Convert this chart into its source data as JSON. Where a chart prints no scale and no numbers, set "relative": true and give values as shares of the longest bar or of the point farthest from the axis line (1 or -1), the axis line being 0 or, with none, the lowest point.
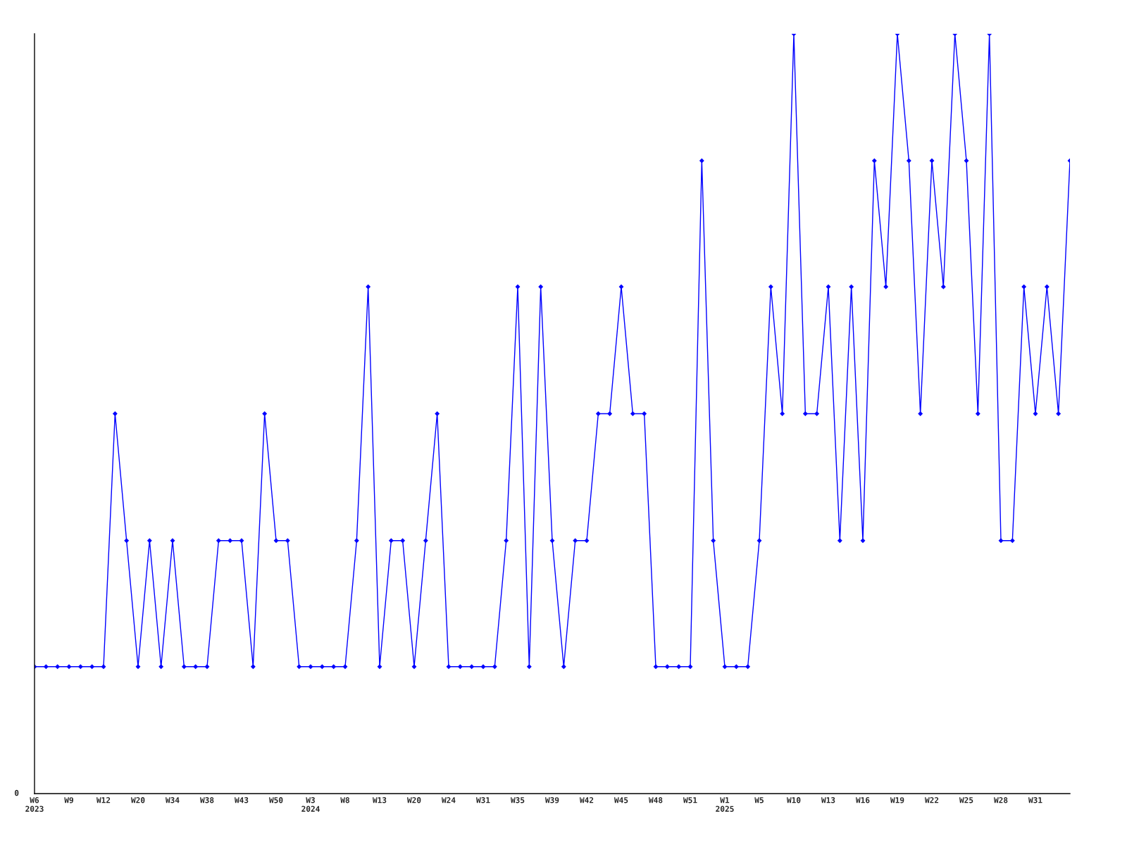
{
  "chart_data": {
    "type": "line",
    "relative": true,
    "categories": [
      "W6\n2023",
      null,
      null,
      "W9",
      null,
      null,
      "W12",
      null,
      null,
      "W20",
      null,
      null,
      "W34",
      null,
      null,
      "W38",
      null,
      null,
      "W43",
      null,
      null,
      "W50",
      null,
      null,
      "W3\n2024",
      null,
      null,
      "W8",
      null,
      null,
      "W13",
      null,
      null,
      "W20",
      null,
      null,
      "W24",
      null,
      null,
      "W31",
      null,
      null,
      "W35",
      null,
      null,
      "W39",
      null,
      null,
      "W42",
      null,
      null,
      "W45",
      null,
      null,
      "W48",
      null,
      null,
      "W51",
      null,
      null,
      "W1\n2025",
      null,
      null,
      "W5",
      null,
      null,
      "W10",
      null,
      null,
      "W13",
      null,
      null,
      "W16",
      null,
      null,
      "W19",
      null,
      null,
      "W22",
      null,
      null,
      "W25",
      null,
      null,
      "W28",
      null,
      null,
      "W31",
      null,
      null,
      null
    ],
    "series": [
      {
        "color": "#0000ff",
        "values": [
          0.167,
          0.167,
          0.167,
          0.167,
          0.167,
          0.167,
          0.167,
          0.5,
          0.333,
          0.167,
          0.333,
          0.167,
          0.333,
          0.167,
          0.167,
          0.167,
          0.333,
          0.333,
          0.333,
          0.167,
          0.5,
          0.333,
          0.333,
          0.167,
          0.167,
          0.167,
          0.167,
          0.167,
          0.333,
          0.667,
          0.167,
          0.333,
          0.333,
          0.167,
          0.333,
          0.5,
          0.167,
          0.167,
          0.167,
          0.167,
          0.167,
          0.333,
          0.667,
          0.167,
          0.667,
          0.333,
          0.167,
          0.333,
          0.333,
          0.5,
          0.5,
          0.667,
          0.5,
          0.5,
          0.167,
          0.167,
          0.167,
          0.167,
          0.833,
          0.333,
          0.167,
          0.167,
          0.167,
          0.333,
          0.667,
          0.5,
          1,
          0.5,
          0.5,
          0.667,
          0.333,
          0.667,
          0.333,
          0.833,
          0.667,
          1,
          0.833,
          0.5,
          0.833,
          0.667,
          1,
          0.833,
          0.5,
          1,
          0.333,
          0.333,
          0.667,
          0.5,
          0.667,
          0.5,
          0.833
        ]
      }
    ],
    "annotations": [
      "0"
    ],
    "marker": "diamond",
    "line_style": "solid",
    "grid": false
  }
}
